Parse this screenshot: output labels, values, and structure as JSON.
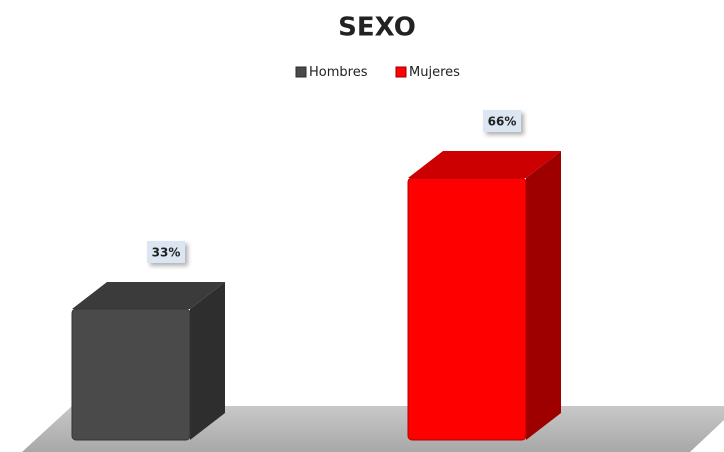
{
  "chart_data": {
    "type": "bar3d",
    "title": "SEXO",
    "categories": [
      null
    ],
    "series": [
      {
        "name": "Hombres",
        "color": "#4a4a4a",
        "values": [
          33
        ],
        "value_labels": [
          "33%"
        ]
      },
      {
        "name": "Mujeres",
        "color": "#ff0000",
        "values": [
          66
        ],
        "value_labels": [
          "66%"
        ]
      }
    ],
    "legend": "top"
  }
}
